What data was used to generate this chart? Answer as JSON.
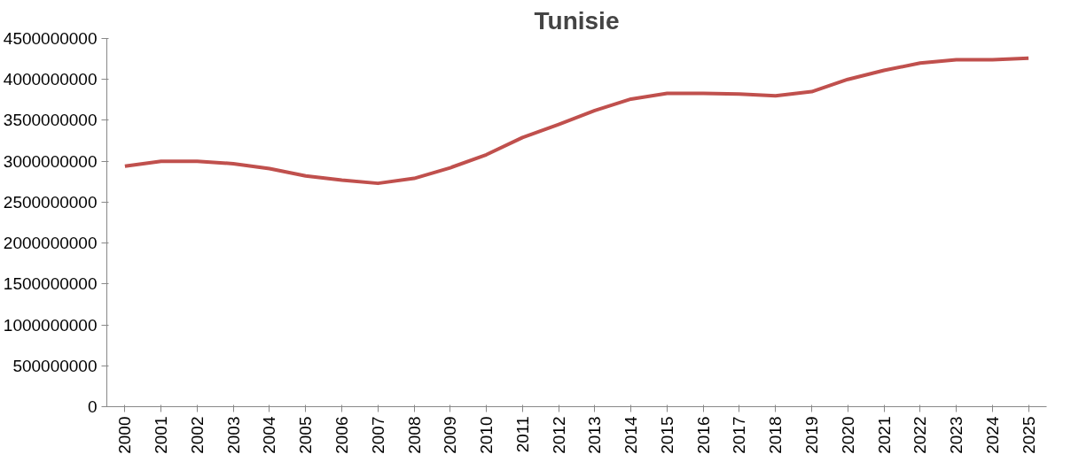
{
  "chart_data": {
    "type": "line",
    "title": "Tunisie",
    "categories": [
      "2000",
      "2001",
      "2002",
      "2003",
      "2004",
      "2005",
      "2006",
      "2007",
      "2008",
      "2009",
      "2010",
      "2011",
      "2012",
      "2013",
      "2014",
      "2015",
      "2016",
      "2017",
      "2018",
      "2019",
      "2020",
      "2021",
      "2022",
      "2023",
      "2024",
      "2025"
    ],
    "series": [
      {
        "color": "#c0504d",
        "values": [
          2940000000,
          3000000000,
          3000000000,
          2970000000,
          2910000000,
          2820000000,
          2770000000,
          2730000000,
          2790000000,
          2920000000,
          3080000000,
          3290000000,
          3450000000,
          3620000000,
          3760000000,
          3830000000,
          3830000000,
          3820000000,
          3800000000,
          3850000000,
          4000000000,
          4110000000,
          4200000000,
          4240000000,
          4240000000,
          4260000000
        ]
      }
    ],
    "ylim": [
      0,
      4500000000
    ],
    "yticks": [
      0,
      500000000,
      1000000000,
      1500000000,
      2000000000,
      2500000000,
      3000000000,
      3500000000,
      4000000000,
      4500000000
    ],
    "grid": false,
    "marker": "none",
    "line_style": "solid"
  }
}
